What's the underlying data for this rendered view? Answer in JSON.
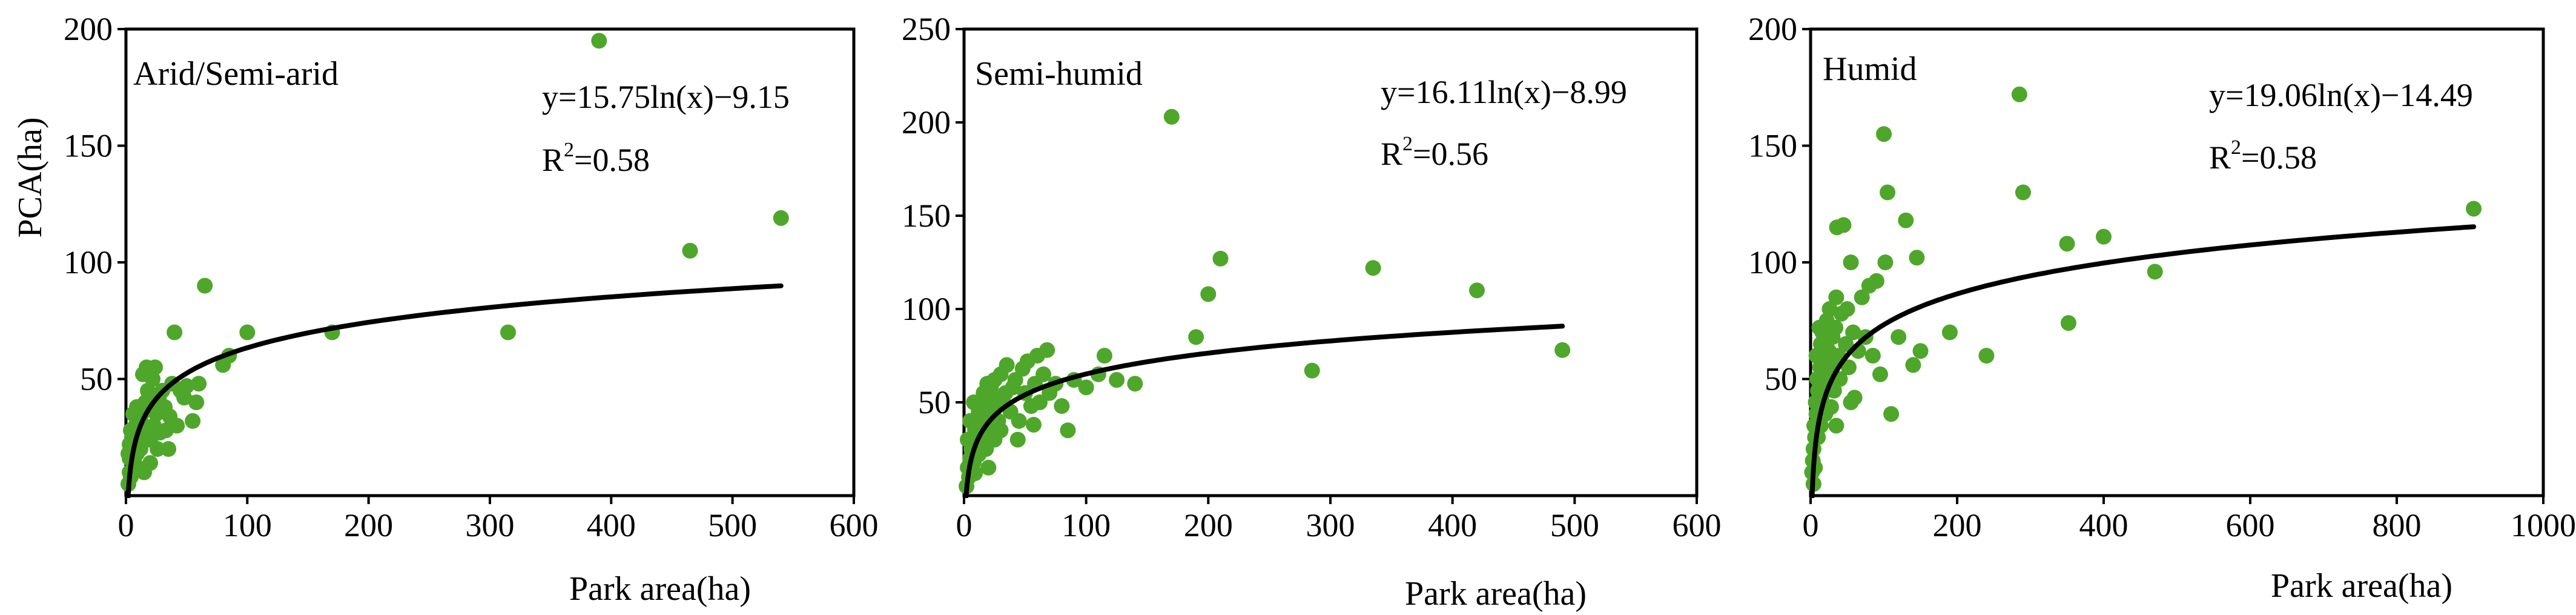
{
  "colors": {
    "point": "#4ea72a",
    "fit": "#000000",
    "axis": "#000000"
  },
  "chart_data": [
    {
      "type": "scatter",
      "title": "Arid/Semi-arid",
      "xlabel": "Park area(ha)",
      "ylabel": "PCA(ha)",
      "xlim": [
        0,
        600
      ],
      "ylim": [
        0,
        200
      ],
      "xticks": [
        "0",
        "100",
        "200",
        "300",
        "400",
        "500",
        "600"
      ],
      "yticks": [
        "50",
        "100",
        "150",
        "200"
      ],
      "fit": {
        "equation": "y=15.75ln(x)−9.15",
        "r2_prefix": "R",
        "r2_sup": "2",
        "r2_value": "=0.58",
        "a": 15.75,
        "b": -9.15,
        "x_range": [
          1,
          540
        ]
      },
      "points": [
        [
          2,
          5
        ],
        [
          3,
          10
        ],
        [
          4,
          8
        ],
        [
          5,
          15
        ],
        [
          6,
          12
        ],
        [
          2,
          18
        ],
        [
          3,
          22
        ],
        [
          5,
          25
        ],
        [
          7,
          20
        ],
        [
          8,
          30
        ],
        [
          10,
          28
        ],
        [
          12,
          33
        ],
        [
          4,
          28
        ],
        [
          6,
          35
        ],
        [
          9,
          38
        ],
        [
          11,
          25
        ],
        [
          13,
          35
        ],
        [
          15,
          30
        ],
        [
          16,
          40
        ],
        [
          18,
          45
        ],
        [
          20,
          38
        ],
        [
          22,
          50
        ],
        [
          14,
          52
        ],
        [
          17,
          55
        ],
        [
          24,
          55
        ],
        [
          25,
          35
        ],
        [
          27,
          42
        ],
        [
          30,
          45
        ],
        [
          32,
          38
        ],
        [
          35,
          20
        ],
        [
          38,
          48
        ],
        [
          40,
          70
        ],
        [
          42,
          30
        ],
        [
          45,
          45
        ],
        [
          48,
          42
        ],
        [
          50,
          47
        ],
        [
          55,
          32
        ],
        [
          58,
          40
        ],
        [
          60,
          48
        ],
        [
          65,
          90
        ],
        [
          80,
          56
        ],
        [
          85,
          60
        ],
        [
          100,
          70
        ],
        [
          170,
          70
        ],
        [
          315,
          70
        ],
        [
          390,
          195
        ],
        [
          465,
          105
        ],
        [
          540,
          119
        ],
        [
          3,
          16
        ],
        [
          8,
          13
        ],
        [
          12,
          20
        ],
        [
          20,
          24
        ],
        [
          23,
          30
        ],
        [
          28,
          27
        ],
        [
          33,
          28
        ],
        [
          20,
          14
        ],
        [
          9,
          18
        ],
        [
          26,
          20
        ],
        [
          15,
          10
        ],
        [
          36,
          34
        ]
      ]
    },
    {
      "type": "scatter",
      "title": "Semi-humid",
      "xlabel": "Park area(ha)",
      "ylabel": "",
      "xlim": [
        0,
        600
      ],
      "ylim": [
        0,
        250
      ],
      "xticks": [
        "0",
        "100",
        "200",
        "300",
        "400",
        "500",
        "600"
      ],
      "yticks": [
        "50",
        "100",
        "150",
        "200",
        "250"
      ],
      "fit": {
        "equation": "y=16.11ln(x)−8.99",
        "r2_prefix": "R",
        "r2_sup": "2",
        "r2_value": "=0.56",
        "a": 16.11,
        "b": -8.99,
        "x_range": [
          1,
          490
        ]
      },
      "points": [
        [
          2,
          5
        ],
        [
          3,
          15
        ],
        [
          4,
          10
        ],
        [
          5,
          20
        ],
        [
          6,
          25
        ],
        [
          7,
          30
        ],
        [
          8,
          18
        ],
        [
          9,
          35
        ],
        [
          10,
          40
        ],
        [
          11,
          28
        ],
        [
          12,
          45
        ],
        [
          13,
          38
        ],
        [
          14,
          50
        ],
        [
          15,
          30
        ],
        [
          16,
          55
        ],
        [
          17,
          42
        ],
        [
          18,
          48
        ],
        [
          19,
          60
        ],
        [
          20,
          35
        ],
        [
          22,
          58
        ],
        [
          24,
          45
        ],
        [
          25,
          62
        ],
        [
          26,
          52
        ],
        [
          28,
          40
        ],
        [
          30,
          65
        ],
        [
          32,
          50
        ],
        [
          34,
          55
        ],
        [
          35,
          70
        ],
        [
          38,
          45
        ],
        [
          40,
          58
        ],
        [
          42,
          62
        ],
        [
          45,
          40
        ],
        [
          48,
          68
        ],
        [
          50,
          55
        ],
        [
          52,
          72
        ],
        [
          55,
          48
        ],
        [
          58,
          60
        ],
        [
          60,
          75
        ],
        [
          62,
          50
        ],
        [
          65,
          65
        ],
        [
          68,
          78
        ],
        [
          70,
          55
        ],
        [
          75,
          60
        ],
        [
          80,
          48
        ],
        [
          85,
          35
        ],
        [
          90,
          62
        ],
        [
          100,
          58
        ],
        [
          110,
          65
        ],
        [
          115,
          75
        ],
        [
          125,
          62
        ],
        [
          140,
          60
        ],
        [
          170,
          203
        ],
        [
          190,
          85
        ],
        [
          200,
          108
        ],
        [
          210,
          127
        ],
        [
          285,
          67
        ],
        [
          335,
          122
        ],
        [
          420,
          110
        ],
        [
          490,
          78
        ],
        [
          5,
          40
        ],
        [
          3,
          30
        ],
        [
          8,
          50
        ],
        [
          12,
          22
        ],
        [
          18,
          25
        ],
        [
          25,
          30
        ],
        [
          30,
          35
        ],
        [
          44,
          30
        ],
        [
          57,
          38
        ],
        [
          20,
          15
        ],
        [
          9,
          12
        ]
      ]
    },
    {
      "type": "scatter",
      "title": "Humid",
      "xlabel": "Park area(ha)",
      "ylabel": "",
      "xlim": [
        0,
        1000
      ],
      "ylim": [
        0,
        200
      ],
      "xticks": [
        "0",
        "200",
        "400",
        "600",
        "800",
        "1000"
      ],
      "yticks": [
        "50",
        "100",
        "150",
        "200"
      ],
      "fit": {
        "equation": "y=19.06ln(x)−14.49",
        "r2_prefix": "R",
        "r2_sup": "2",
        "r2_value": "=0.58",
        "a": 19.06,
        "b": -14.49,
        "x_range": [
          2,
          905
        ]
      },
      "points": [
        [
          2,
          10
        ],
        [
          3,
          15
        ],
        [
          4,
          20
        ],
        [
          5,
          30
        ],
        [
          6,
          25
        ],
        [
          7,
          40
        ],
        [
          8,
          35
        ],
        [
          9,
          50
        ],
        [
          10,
          45
        ],
        [
          11,
          60
        ],
        [
          12,
          38
        ],
        [
          13,
          55
        ],
        [
          14,
          65
        ],
        [
          15,
          42
        ],
        [
          16,
          70
        ],
        [
          18,
          52
        ],
        [
          20,
          58
        ],
        [
          22,
          75
        ],
        [
          24,
          48
        ],
        [
          25,
          62
        ],
        [
          26,
          80
        ],
        [
          28,
          55
        ],
        [
          30,
          68
        ],
        [
          32,
          45
        ],
        [
          34,
          72
        ],
        [
          35,
          85
        ],
        [
          36,
          115
        ],
        [
          38,
          60
        ],
        [
          40,
          50
        ],
        [
          42,
          78
        ],
        [
          45,
          116
        ],
        [
          48,
          65
        ],
        [
          50,
          80
        ],
        [
          52,
          55
        ],
        [
          55,
          100
        ],
        [
          58,
          70
        ],
        [
          60,
          42
        ],
        [
          65,
          62
        ],
        [
          70,
          85
        ],
        [
          75,
          68
        ],
        [
          80,
          90
        ],
        [
          85,
          60
        ],
        [
          90,
          92
        ],
        [
          95,
          52
        ],
        [
          100,
          155
        ],
        [
          102,
          100
        ],
        [
          105,
          130
        ],
        [
          110,
          35
        ],
        [
          120,
          68
        ],
        [
          130,
          118
        ],
        [
          140,
          56
        ],
        [
          145,
          102
        ],
        [
          150,
          62
        ],
        [
          190,
          70
        ],
        [
          240,
          60
        ],
        [
          285,
          172
        ],
        [
          290,
          130
        ],
        [
          350,
          108
        ],
        [
          352,
          74
        ],
        [
          400,
          111
        ],
        [
          470,
          96
        ],
        [
          905,
          123
        ],
        [
          4,
          5
        ],
        [
          6,
          12
        ],
        [
          10,
          25
        ],
        [
          14,
          30
        ],
        [
          20,
          35
        ],
        [
          28,
          38
        ],
        [
          35,
          30
        ],
        [
          55,
          40
        ],
        [
          8,
          60
        ],
        [
          12,
          72
        ]
      ]
    }
  ]
}
